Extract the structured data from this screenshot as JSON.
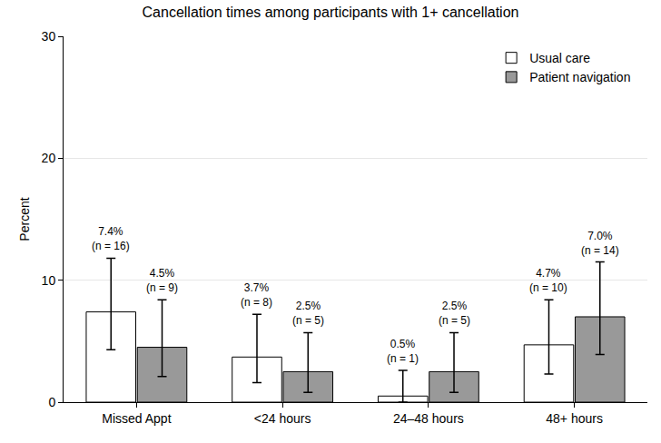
{
  "chart_data": {
    "type": "bar",
    "title": "Cancellation times among participants with 1+ cancellation",
    "y_label": "Percent",
    "categories": [
      "Missed Appt",
      "<24 hours",
      "24–48 hours",
      "48+ hours"
    ],
    "series": [
      {
        "name": "Usual care",
        "color": "#ffffff",
        "values": [
          7.4,
          3.7,
          0.5,
          4.7
        ],
        "value_labels": [
          "7.4%\n(n = 16)",
          "3.7%\n(n = 8)",
          "0.5%\n(n = 1)",
          "4.7%\n(n = 10)"
        ],
        "error_lower": [
          4.3,
          1.6,
          0.0,
          2.3
        ],
        "error_upper": [
          11.8,
          7.2,
          2.6,
          8.4
        ]
      },
      {
        "name": "Patient navigation",
        "color": "#999999",
        "values": [
          4.5,
          2.5,
          2.5,
          7.0
        ],
        "value_labels": [
          "4.5%\n(n = 9)",
          "2.5%\n(n = 5)",
          "2.5%\n(n = 5)",
          "7.0%\n(n = 14)"
        ],
        "error_lower": [
          2.1,
          0.8,
          0.8,
          3.9
        ],
        "error_upper": [
          8.4,
          5.7,
          5.7,
          11.5
        ]
      }
    ],
    "ylim": [
      0,
      30
    ],
    "yticks": [
      0,
      10,
      20,
      30
    ],
    "grid": true,
    "legend": "upper right",
    "data_labels": true
  }
}
